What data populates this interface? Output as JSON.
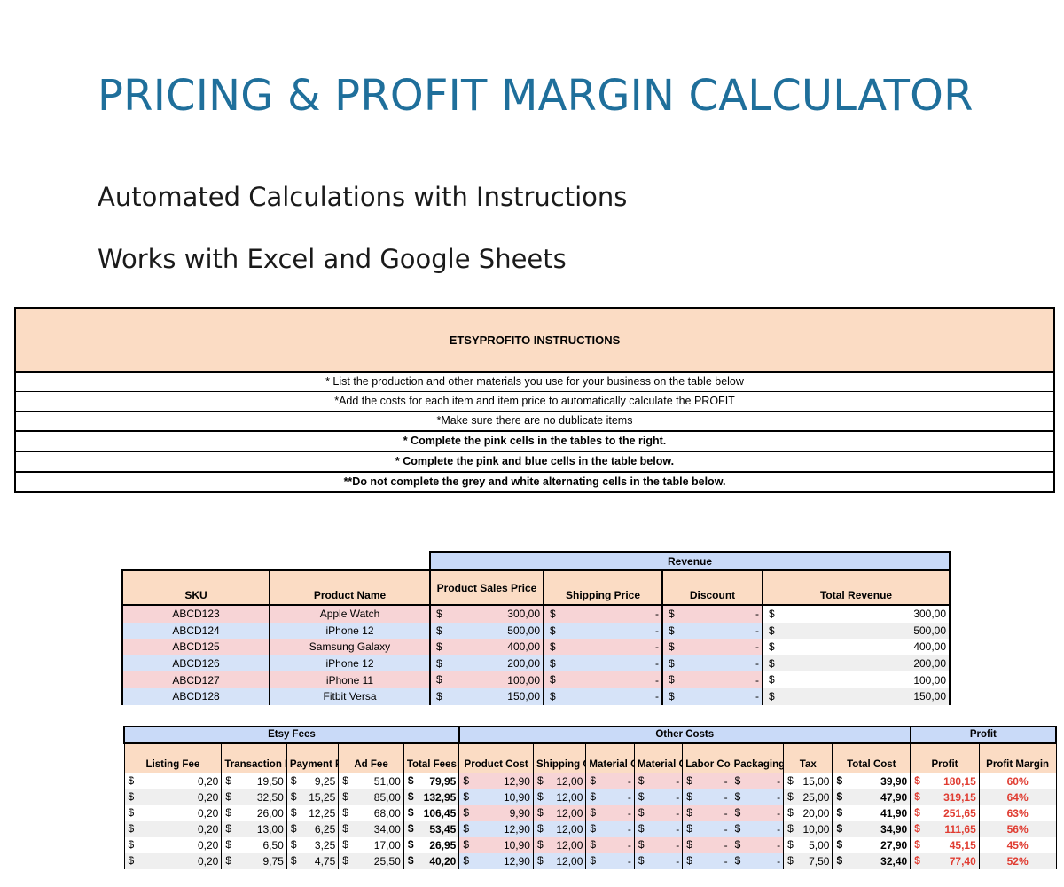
{
  "header": {
    "title": "PRICING & PROFIT MARGIN CALCULATOR",
    "subtitle1": "Automated Calculations with Instructions",
    "subtitle2": "Works with Excel and Google Sheets"
  },
  "instructions": {
    "heading": "ETSYPROFITO INSTRUCTIONS",
    "lines": [
      "* List the production and other materials you use for your business on the table below",
      "*Add the costs for each item and item price to automatically calculate the PROFIT",
      "*Make sure there are no dublicate items",
      "* Complete the pink cells in the tables to the right.",
      "* Complete the pink and blue cells in the table below.",
      "**Do not complete the grey and white alternating cells in the table below."
    ]
  },
  "revenue_table": {
    "group_label": "Revenue",
    "headers": [
      "SKU",
      "Product Name",
      "Product Sales Price",
      "Shipping Price",
      "Discount",
      "Total Revenue"
    ],
    "currency": "$",
    "rows": [
      {
        "sku": "ABCD123",
        "name": "Apple Watch",
        "price": "300,00",
        "shipping": "-",
        "discount": "-",
        "total": "300,00"
      },
      {
        "sku": "ABCD124",
        "name": "iPhone 12",
        "price": "500,00",
        "shipping": "-",
        "discount": "-",
        "total": "500,00"
      },
      {
        "sku": "ABCD125",
        "name": "Samsung Galaxy",
        "price": "400,00",
        "shipping": "-",
        "discount": "-",
        "total": "400,00"
      },
      {
        "sku": "ABCD126",
        "name": "iPhone 12",
        "price": "200,00",
        "shipping": "-",
        "discount": "-",
        "total": "200,00"
      },
      {
        "sku": "ABCD127",
        "name": "iPhone 11",
        "price": "100,00",
        "shipping": "-",
        "discount": "-",
        "total": "100,00"
      },
      {
        "sku": "ABCD128",
        "name": "Fitbit Versa",
        "price": "150,00",
        "shipping": "-",
        "discount": "-",
        "total": "150,00"
      }
    ]
  },
  "fees_table": {
    "groups": [
      "Etsy Fees",
      "Other Costs",
      "Profit"
    ],
    "headers": [
      "Listing Fee",
      "Transaction Fees",
      "Payment Fee",
      "Ad Fee",
      "Total Fees",
      "Product Cost",
      "Shipping Cost",
      "Material Cost",
      "Material Cost",
      "Labor Cost",
      "Packaging Cost",
      "Tax",
      "Total Cost",
      "Profit",
      "Profit Margin"
    ],
    "currency": "$",
    "rows": [
      {
        "listing": "0,20",
        "transaction": "19,50",
        "payment": "9,25",
        "ad": "51,00",
        "total_fees": "79,95",
        "product_cost": "12,90",
        "shipping": "12,00",
        "mat1": "-",
        "mat2": "-",
        "labor": "-",
        "packaging": "-",
        "tax": "15,00",
        "total_cost": "39,90",
        "profit": "180,15",
        "margin": "60%"
      },
      {
        "listing": "0,20",
        "transaction": "32,50",
        "payment": "15,25",
        "ad": "85,00",
        "total_fees": "132,95",
        "product_cost": "10,90",
        "shipping": "12,00",
        "mat1": "-",
        "mat2": "-",
        "labor": "-",
        "packaging": "-",
        "tax": "25,00",
        "total_cost": "47,90",
        "profit": "319,15",
        "margin": "64%"
      },
      {
        "listing": "0,20",
        "transaction": "26,00",
        "payment": "12,25",
        "ad": "68,00",
        "total_fees": "106,45",
        "product_cost": "9,90",
        "shipping": "12,00",
        "mat1": "-",
        "mat2": "-",
        "labor": "-",
        "packaging": "-",
        "tax": "20,00",
        "total_cost": "41,90",
        "profit": "251,65",
        "margin": "63%"
      },
      {
        "listing": "0,20",
        "transaction": "13,00",
        "payment": "6,25",
        "ad": "34,00",
        "total_fees": "53,45",
        "product_cost": "12,90",
        "shipping": "12,00",
        "mat1": "-",
        "mat2": "-",
        "labor": "-",
        "packaging": "-",
        "tax": "10,00",
        "total_cost": "34,90",
        "profit": "111,65",
        "margin": "56%"
      },
      {
        "listing": "0,20",
        "transaction": "6,50",
        "payment": "3,25",
        "ad": "17,00",
        "total_fees": "26,95",
        "product_cost": "10,90",
        "shipping": "12,00",
        "mat1": "-",
        "mat2": "-",
        "labor": "-",
        "packaging": "-",
        "tax": "5,00",
        "total_cost": "27,90",
        "profit": "45,15",
        "margin": "45%"
      },
      {
        "listing": "0,20",
        "transaction": "9,75",
        "payment": "4,75",
        "ad": "25,50",
        "total_fees": "40,20",
        "product_cost": "12,90",
        "shipping": "12,00",
        "mat1": "-",
        "mat2": "-",
        "labor": "-",
        "packaging": "-",
        "tax": "7,50",
        "total_cost": "32,40",
        "profit": "77,40",
        "margin": "52%"
      }
    ]
  },
  "colors": {
    "title": "#1f6f9b",
    "header_peach": "#fbdcc4",
    "group_blue": "#c9daf8",
    "pink_cell": "#f7d4d6",
    "blue_cell": "#d6e3f8",
    "profit_red": "#e03c31"
  }
}
